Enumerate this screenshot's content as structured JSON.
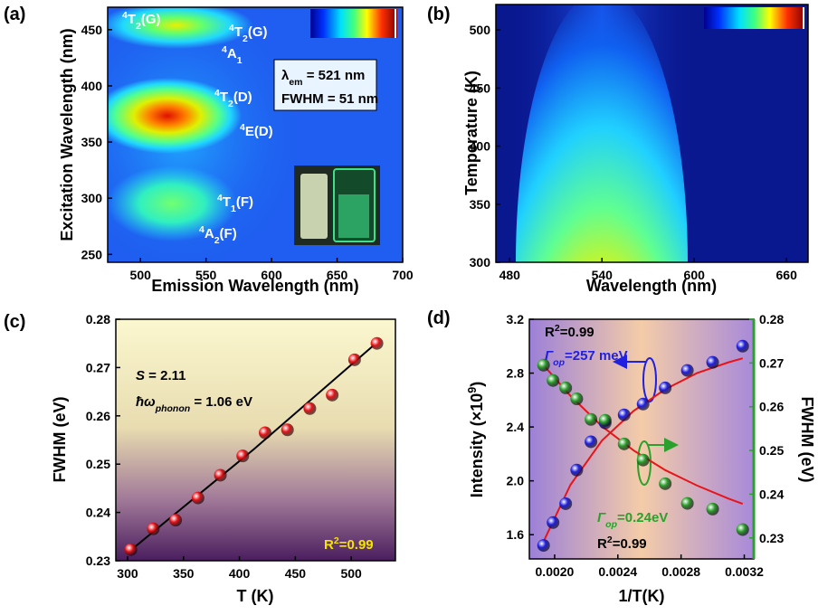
{
  "chart_data": [
    {
      "type": "heatmap",
      "panel_label": "(a)",
      "x_label": "Emission Wavelength (nm)",
      "y_label": "Excitation Wavelength (nm)",
      "xlim": [
        475,
        700
      ],
      "xticks": [
        500,
        550,
        600,
        650,
        700
      ],
      "ylim": [
        243,
        470
      ],
      "yticks": [
        250,
        300,
        350,
        400,
        450
      ],
      "annotations": [
        {
          "color": "#ffffff",
          "runs": [
            {
              "text": "4",
              "style": "sup"
            },
            {
              "text": "T",
              "style": "normal"
            },
            {
              "text": "2",
              "style": "sub"
            },
            {
              "text": "(G)",
              "style": "normal"
            }
          ]
        },
        {
          "color": "#ffffff",
          "runs": [
            {
              "text": "4",
              "style": "sup"
            },
            {
              "text": "T",
              "style": "normal"
            },
            {
              "text": "2",
              "style": "sub"
            },
            {
              "text": "(G)",
              "style": "normal"
            }
          ]
        },
        {
          "color": "#ffffff",
          "runs": [
            {
              "text": "4",
              "style": "sup"
            },
            {
              "text": "A",
              "style": "normal"
            },
            {
              "text": "1",
              "style": "sub"
            }
          ]
        },
        {
          "color": "#ffffff",
          "runs": [
            {
              "text": "4",
              "style": "sup"
            },
            {
              "text": "T",
              "style": "normal"
            },
            {
              "text": "2",
              "style": "sub"
            },
            {
              "text": "(D)",
              "style": "normal"
            }
          ]
        },
        {
          "color": "#ffffff",
          "runs": [
            {
              "text": "4",
              "style": "sup"
            },
            {
              "text": "E(D)",
              "style": "normal"
            }
          ]
        },
        {
          "color": "#ffffff",
          "runs": [
            {
              "text": "4",
              "style": "sup"
            },
            {
              "text": "T",
              "style": "normal"
            },
            {
              "text": "1",
              "style": "sub"
            },
            {
              "text": "(F)",
              "style": "normal"
            }
          ]
        },
        {
          "color": "#ffffff",
          "runs": [
            {
              "text": "4",
              "style": "sup"
            },
            {
              "text": "A",
              "style": "normal"
            },
            {
              "text": "2",
              "style": "sub"
            },
            {
              "text": "(F)",
              "style": "normal"
            }
          ]
        },
        {
          "color": "#000000",
          "runs": [
            {
              "text": "λ",
              "style": "normal"
            },
            {
              "text": "em",
              "style": "sub"
            },
            {
              "text": " = 521 nm",
              "style": "normal"
            }
          ]
        },
        {
          "color": "#000000",
          "runs": [
            {
              "text": "FWHM = 51 nm",
              "style": "normal"
            }
          ]
        }
      ]
    },
    {
      "type": "heatmap",
      "panel_label": "(b)",
      "x_label": "Wavelength (nm)",
      "y_label": "Temperature (K)",
      "xlim": [
        471,
        674
      ],
      "xticks": [
        480,
        540,
        600,
        660
      ],
      "ylim": [
        300,
        522
      ],
      "yticks": [
        300,
        350,
        400,
        450,
        500
      ]
    },
    {
      "type": "scatter",
      "panel_label": "(c)",
      "x_label": "T (K)",
      "y_label": "FWHM (eV)",
      "xlim": [
        289.5,
        539.5
      ],
      "xticks": [
        300,
        350,
        400,
        450,
        500
      ],
      "ylim": [
        0.23,
        0.28
      ],
      "yticks": [
        0.23,
        0.24,
        0.25,
        0.26,
        0.27,
        0.28
      ],
      "series": [
        {
          "color": "#e8141a",
          "marker": "sphere",
          "x": [
            303,
            323,
            343,
            363,
            383,
            403,
            423,
            443,
            463,
            483,
            503,
            523
          ],
          "values": [
            0.2323,
            0.2366,
            0.2384,
            0.243,
            0.2477,
            0.2517,
            0.2565,
            0.2571,
            0.2615,
            0.2643,
            0.2716,
            0.275
          ]
        },
        {
          "color": "#000000",
          "marker": "line",
          "x": [
            303,
            413,
            523
          ],
          "values": [
            0.2322,
            0.2531,
            0.2752
          ]
        }
      ],
      "annotations": [
        {
          "color": "#000000",
          "runs": [
            {
              "text": "S",
              "style": "italic"
            },
            {
              "text": " = 2.11",
              "style": "normal"
            }
          ]
        },
        {
          "color": "#000000",
          "runs": [
            {
              "text": "ħω",
              "style": "italic"
            },
            {
              "text": "phonon",
              "style": "sub-italic"
            },
            {
              "text": " = 1.06 eV",
              "style": "normal"
            }
          ]
        },
        {
          "color": "#f5e400",
          "runs": [
            {
              "text": "R",
              "style": "normal"
            },
            {
              "text": "2",
              "style": "sup"
            },
            {
              "text": "=0.99",
              "style": "normal"
            }
          ]
        }
      ]
    },
    {
      "type": "scatter",
      "panel_label": "(d)",
      "x_label": "1/T(K)",
      "y_label": [
        {
          "text": "Intensity (×10",
          "style": "normal"
        },
        {
          "text": "9",
          "style": "sup"
        },
        {
          "text": ")",
          "style": "normal"
        }
      ],
      "y2_label": "FWHM (eV)",
      "xlim": [
        0.00184,
        0.00326
      ],
      "xticks": [
        {
          "value": 0.002,
          "label": "0.0020"
        },
        {
          "value": 0.0024,
          "label": "0.0024"
        },
        {
          "value": 0.0028,
          "label": "0.0028"
        },
        {
          "value": 0.0032,
          "label": "0.0032"
        }
      ],
      "ylim": [
        1.42,
        3.2
      ],
      "yticks": [
        {
          "value": 1.6,
          "label": "1.6"
        },
        {
          "value": 2,
          "label": "2.0"
        },
        2.4,
        2.8,
        3.2
      ],
      "y2lim": [
        0.2252,
        0.28
      ],
      "y2ticks": [
        0.23,
        0.24,
        0.25,
        0.26,
        0.27,
        0.28
      ],
      "series": [
        {
          "color": "#2020e0",
          "marker": "sphere",
          "axis": "y",
          "x": [
            0.00193,
            0.00199,
            0.00207,
            0.00214,
            0.00223,
            0.00232,
            0.00244,
            0.00256,
            0.0027,
            0.00284,
            0.003,
            0.00319
          ],
          "values": [
            1.52,
            1.69,
            1.83,
            2.08,
            2.29,
            2.43,
            2.49,
            2.57,
            2.69,
            2.82,
            2.88,
            3.0
          ]
        },
        {
          "color": "#2ca02c",
          "marker": "sphere",
          "axis": "y2",
          "x": [
            0.00193,
            0.00199,
            0.00207,
            0.00214,
            0.00223,
            0.00232,
            0.00244,
            0.00256,
            0.0027,
            0.00284,
            0.003,
            0.00319
          ],
          "values": [
            0.2695,
            0.266,
            0.2643,
            0.2618,
            0.2571,
            0.2569,
            0.2515,
            0.2478,
            0.2424,
            0.2379,
            0.2366,
            0.2319
          ]
        },
        {
          "color": "#e8141a",
          "marker": "line",
          "axis": "y",
          "x": [
            0.00193,
            0.0021,
            0.0023,
            0.0025,
            0.0027,
            0.0029,
            0.0031,
            0.00319
          ],
          "values": [
            1.55,
            1.97,
            2.3,
            2.52,
            2.68,
            2.8,
            2.88,
            2.91
          ]
        },
        {
          "color": "#e8141a",
          "marker": "line",
          "axis": "y2",
          "x": [
            0.00193,
            0.0021,
            0.0023,
            0.0025,
            0.0027,
            0.0029,
            0.0031,
            0.00319
          ],
          "values": [
            0.2695,
            0.2625,
            0.2555,
            0.25,
            0.2455,
            0.242,
            0.239,
            0.2378
          ]
        }
      ],
      "annotations": [
        {
          "color": "#000000",
          "runs": [
            {
              "text": "R",
              "style": "normal"
            },
            {
              "text": "2",
              "style": "sup"
            },
            {
              "text": "=0.99",
              "style": "normal"
            }
          ]
        },
        {
          "color": "#2020e0",
          "runs": [
            {
              "text": "Γ",
              "style": "italic"
            },
            {
              "text": "op",
              "style": "sub-italic"
            },
            {
              "text": "=257 meV",
              "style": "normal"
            }
          ]
        },
        {
          "color": "#2ca02c",
          "runs": [
            {
              "text": "Γ",
              "style": "italic"
            },
            {
              "text": "op",
              "style": "sub-italic"
            },
            {
              "text": "=0.24eV",
              "style": "normal"
            }
          ]
        },
        {
          "color": "#000000",
          "runs": [
            {
              "text": "R",
              "style": "normal"
            },
            {
              "text": "2",
              "style": "sup"
            },
            {
              "text": "=0.99",
              "style": "normal"
            }
          ]
        }
      ]
    }
  ]
}
